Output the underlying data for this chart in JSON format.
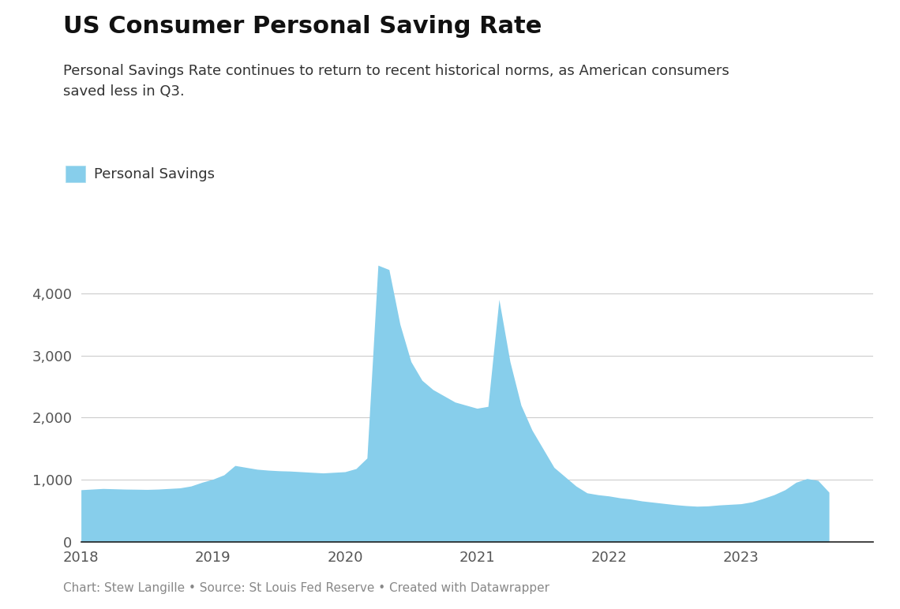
{
  "title": "US Consumer Personal Saving Rate",
  "subtitle": "Personal Savings Rate continues to return to recent historical norms, as American consumers\nsaved less in Q3.",
  "legend_label": "Personal Savings",
  "fill_color": "#87CEEB",
  "fill_alpha": 1.0,
  "background_color": "#ffffff",
  "footer": "Chart: Stew Langille • Source: St Louis Fed Reserve • Created with Datawrapper",
  "ylim": [
    0,
    4700
  ],
  "yticks": [
    0,
    1000,
    2000,
    3000,
    4000
  ],
  "values": [
    840,
    850,
    860,
    855,
    850,
    848,
    845,
    850,
    860,
    870,
    900,
    960,
    1010,
    1080,
    1230,
    1200,
    1170,
    1155,
    1145,
    1140,
    1130,
    1120,
    1110,
    1120,
    1130,
    1180,
    1350,
    4450,
    4380,
    3500,
    2900,
    2600,
    2450,
    2350,
    2250,
    2200,
    2150,
    2180,
    3900,
    2900,
    2200,
    1800,
    1500,
    1200,
    1050,
    900,
    790,
    760,
    740,
    710,
    690,
    660,
    640,
    620,
    600,
    585,
    575,
    580,
    595,
    605,
    615,
    645,
    700,
    760,
    840,
    960,
    1020,
    990,
    800
  ],
  "xtick_positions": [
    0,
    12,
    24,
    36,
    48,
    60,
    72
  ],
  "xtick_labels": [
    "2018",
    "2019",
    "2020",
    "2021",
    "2022",
    "2023",
    ""
  ],
  "title_fontsize": 22,
  "subtitle_fontsize": 13,
  "tick_fontsize": 13,
  "legend_fontsize": 13,
  "footer_fontsize": 11
}
